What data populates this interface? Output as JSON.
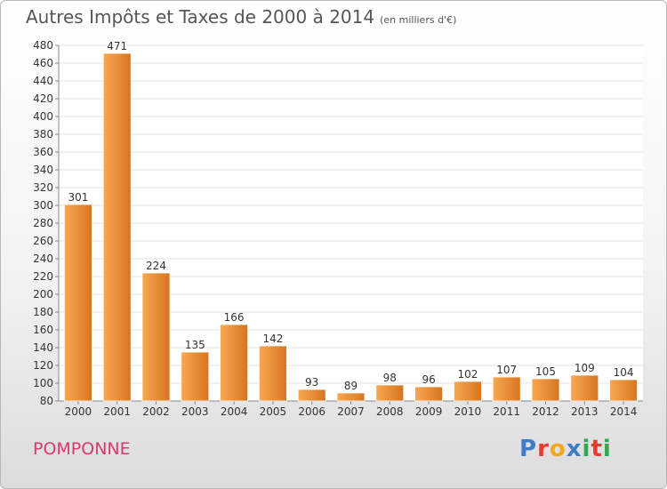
{
  "header": {
    "title": "Autres Impôts et Taxes de 2000 à 2014",
    "unit_note": "(en milliers d'€)"
  },
  "footer": {
    "commune": "POMPONNE",
    "logo_text": "Proxiti"
  },
  "colors": {
    "bar_light": "#f8a852",
    "bar_dark": "#d77520",
    "title": "#555555",
    "commune": "#d83a6e",
    "logo_letters": [
      "#3d7dc8",
      "#e63b2e",
      "#f2a81d",
      "#3d7dc8",
      "#2fa84f",
      "#e63b2e",
      "#2fa84f"
    ]
  },
  "chart_data": {
    "type": "bar",
    "title": "Autres Impôts et Taxes de 2000 à 2014",
    "subtitle": "(en milliers d'€)",
    "categories": [
      "2000",
      "2001",
      "2002",
      "2003",
      "2004",
      "2005",
      "2006",
      "2007",
      "2008",
      "2009",
      "2010",
      "2011",
      "2012",
      "2013",
      "2014"
    ],
    "values": [
      301,
      471,
      224,
      135,
      166,
      142,
      93,
      89,
      98,
      96,
      102,
      107,
      105,
      109,
      104
    ],
    "ylim": [
      80,
      480
    ],
    "ytick_step": 20,
    "grid": true,
    "legend": "none"
  }
}
